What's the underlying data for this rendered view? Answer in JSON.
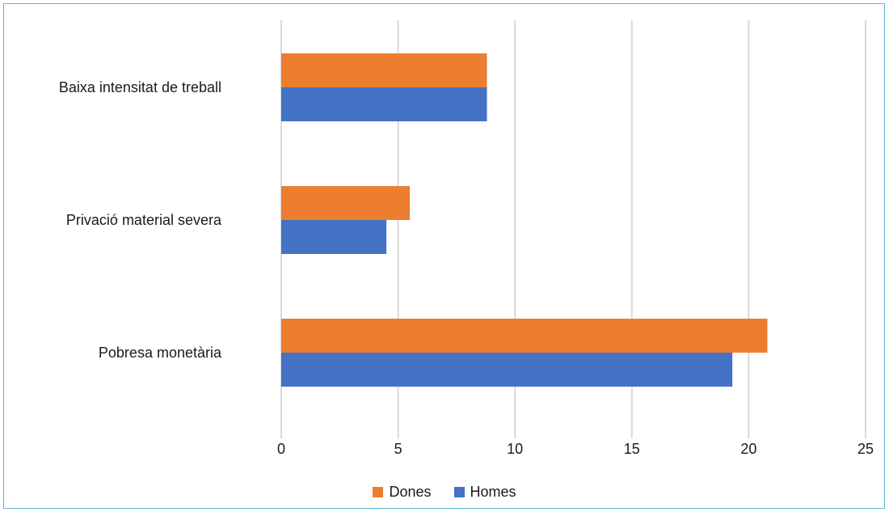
{
  "chart_data": {
    "type": "bar",
    "orientation": "horizontal",
    "categories": [
      "Baixa intensitat de treball",
      "Privació material severa",
      "Pobresa monetària"
    ],
    "series": [
      {
        "name": "Dones",
        "color": "#ED7D31",
        "values": [
          8.8,
          5.5,
          20.8
        ]
      },
      {
        "name": "Homes",
        "color": "#4472C4",
        "values": [
          8.8,
          4.5,
          19.3
        ]
      }
    ],
    "xlim": [
      0,
      25
    ],
    "ticks": [
      0,
      5,
      10,
      15,
      20,
      25
    ],
    "grid": true,
    "legend_position": "bottom"
  }
}
